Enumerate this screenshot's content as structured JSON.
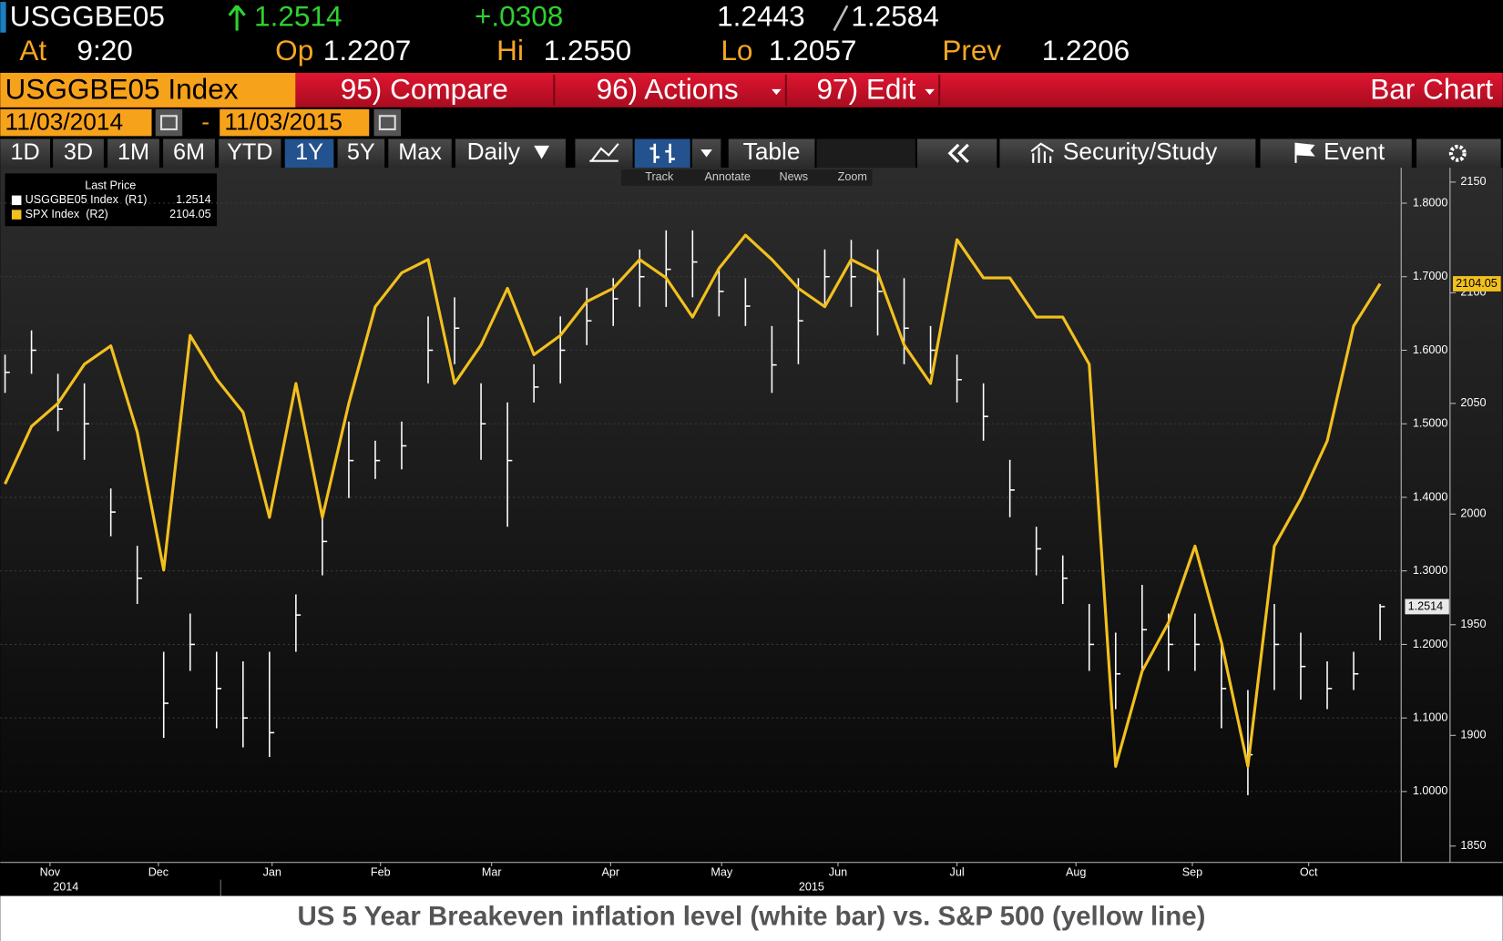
{
  "header": {
    "ticker": "USGGBE05",
    "last": "1.2514",
    "change": "+.0308",
    "bid": "1.2443",
    "ask": "1.2584",
    "at_label": "At",
    "time": "9:20",
    "open_label": "Op",
    "open": "1.2207",
    "high_label": "Hi",
    "high": "1.2550",
    "low_label": "Lo",
    "low": "1.2057",
    "prev_label": "Prev",
    "prev": "1.2206"
  },
  "menu": {
    "security": "USGGBE05 Index",
    "compare": "95) Compare",
    "actions": "96) Actions",
    "edit": "97) Edit",
    "view": "Bar Chart"
  },
  "dates": {
    "start": "11/03/2014",
    "separator": "-",
    "end": "11/03/2015"
  },
  "toolbar": {
    "ranges": [
      "1D",
      "3D",
      "1M",
      "6M",
      "YTD",
      "1Y",
      "5Y",
      "Max"
    ],
    "selected_range": "1Y",
    "period": "Daily",
    "table": "Table",
    "security_study": "Security/Study",
    "event": "Event",
    "tools": [
      "Track",
      "Annotate",
      "News",
      "Zoom"
    ]
  },
  "caption": "US 5 Year Breakeven inflation level (white bar) vs. S&P 500 (yellow line)",
  "chart_data": {
    "type": "bar-line",
    "legend_title": "Last Price",
    "x": [
      0,
      1,
      2,
      3,
      4,
      5,
      6,
      7,
      8,
      9,
      10,
      11,
      12,
      13,
      14,
      15,
      16,
      17,
      18,
      19,
      20,
      21,
      22,
      23,
      24,
      25,
      26,
      27,
      28,
      29,
      30,
      31,
      32,
      33,
      34,
      35,
      36,
      37,
      38,
      39,
      40,
      41,
      42,
      43,
      44,
      45,
      46,
      47,
      48,
      49,
      50,
      51,
      52
    ],
    "xlim": [
      0,
      52
    ],
    "xticks": [
      {
        "value": 1.7,
        "label": "Nov"
      },
      {
        "value": 5.8,
        "label": "Dec"
      },
      {
        "value": 10.1,
        "label": "Jan"
      },
      {
        "value": 14.2,
        "label": "Feb"
      },
      {
        "value": 18.4,
        "label": "Mar"
      },
      {
        "value": 22.9,
        "label": "Apr"
      },
      {
        "value": 27.1,
        "label": "May"
      },
      {
        "value": 31.5,
        "label": "Jun"
      },
      {
        "value": 36.0,
        "label": "Jul"
      },
      {
        "value": 40.5,
        "label": "Aug"
      },
      {
        "value": 44.9,
        "label": "Sep"
      },
      {
        "value": 49.3,
        "label": "Oct"
      }
    ],
    "years": [
      {
        "value": 2.3,
        "label": "2014"
      },
      {
        "value": 30.5,
        "label": "2015"
      }
    ],
    "ylim": [
      0.9036,
      1.8482
    ],
    "yticks": [
      {
        "value": 1.0,
        "label": "1.0000"
      },
      {
        "value": 1.1,
        "label": "1.1000"
      },
      {
        "value": 1.2,
        "label": "1.2000"
      },
      {
        "value": 1.3,
        "label": "1.3000"
      },
      {
        "value": 1.4,
        "label": "1.4000"
      },
      {
        "value": 1.5,
        "label": "1.5000"
      },
      {
        "value": 1.6,
        "label": "1.6000"
      },
      {
        "value": 1.7,
        "label": "1.7000"
      },
      {
        "value": 1.8,
        "label": "1.8000"
      }
    ],
    "y2lim": [
      1842.6,
      2156.5
    ],
    "y2ticks": [
      1850,
      1900,
      1950,
      2000,
      2050,
      2100,
      2150
    ],
    "grid": true,
    "series": [
      {
        "name": "USGGBE05 Index  (R1)",
        "color": "#ffffff",
        "type": "ohlc",
        "high": [
          1.594,
          1.627,
          1.568,
          1.555,
          1.412,
          1.334,
          1.19,
          1.242,
          1.19,
          1.177,
          1.19,
          1.268,
          1.373,
          1.503,
          1.477,
          1.503,
          1.646,
          1.672,
          1.555,
          1.529,
          1.581,
          1.646,
          1.685,
          1.698,
          1.737,
          1.763,
          1.763,
          1.711,
          1.698,
          1.633,
          1.698,
          1.737,
          1.75,
          1.737,
          1.698,
          1.633,
          1.594,
          1.555,
          1.451,
          1.36,
          1.321,
          1.255,
          1.216,
          1.281,
          1.242,
          1.242,
          1.203,
          1.138,
          1.255,
          1.216,
          1.177,
          1.19,
          1.255
        ],
        "low": [
          1.542,
          1.568,
          1.49,
          1.451,
          1.347,
          1.255,
          1.073,
          1.164,
          1.086,
          1.06,
          1.047,
          1.19,
          1.294,
          1.399,
          1.425,
          1.438,
          1.555,
          1.581,
          1.451,
          1.36,
          1.529,
          1.555,
          1.607,
          1.633,
          1.659,
          1.659,
          1.672,
          1.646,
          1.633,
          1.542,
          1.581,
          1.659,
          1.659,
          1.62,
          1.581,
          1.568,
          1.529,
          1.477,
          1.373,
          1.294,
          1.255,
          1.164,
          1.112,
          1.164,
          1.164,
          1.164,
          1.086,
          0.995,
          1.138,
          1.125,
          1.112,
          1.138,
          1.2057
        ],
        "values": [
          1.57,
          1.6,
          1.52,
          1.5,
          1.38,
          1.29,
          1.12,
          1.2,
          1.14,
          1.1,
          1.08,
          1.24,
          1.34,
          1.45,
          1.45,
          1.47,
          1.6,
          1.63,
          1.5,
          1.45,
          1.55,
          1.6,
          1.64,
          1.67,
          1.7,
          1.71,
          1.72,
          1.68,
          1.66,
          1.58,
          1.64,
          1.7,
          1.7,
          1.68,
          1.63,
          1.6,
          1.56,
          1.51,
          1.41,
          1.33,
          1.29,
          1.2,
          1.16,
          1.22,
          1.2,
          1.2,
          1.14,
          1.05,
          1.2,
          1.17,
          1.14,
          1.16,
          1.2514
        ]
      },
      {
        "name": "SPX Index  (R2)",
        "color": "#f2c01e",
        "type": "line",
        "axis": "y2",
        "values": [
          2013.6,
          2039.6,
          2050,
          2067.7,
          2076,
          2037,
          1974.7,
          2080.7,
          2061,
          2046,
          1998.5,
          2059,
          1998.5,
          2050,
          2093.7,
          2109,
          2115,
          2059,
          2076.4,
          2102,
          2072,
          2080.7,
          2096,
          2102,
          2115,
          2106.7,
          2089,
          2111,
          2126,
          2115,
          2102,
          2093.7,
          2115,
          2109,
          2076.4,
          2059,
          2124,
          2106.7,
          2106.7,
          2089,
          2089,
          2067.7,
          1886,
          1929,
          1951,
          1985.5,
          1942,
          1886,
          1985.5,
          2007,
          2033,
          2085,
          2104.05
        ]
      }
    ]
  }
}
